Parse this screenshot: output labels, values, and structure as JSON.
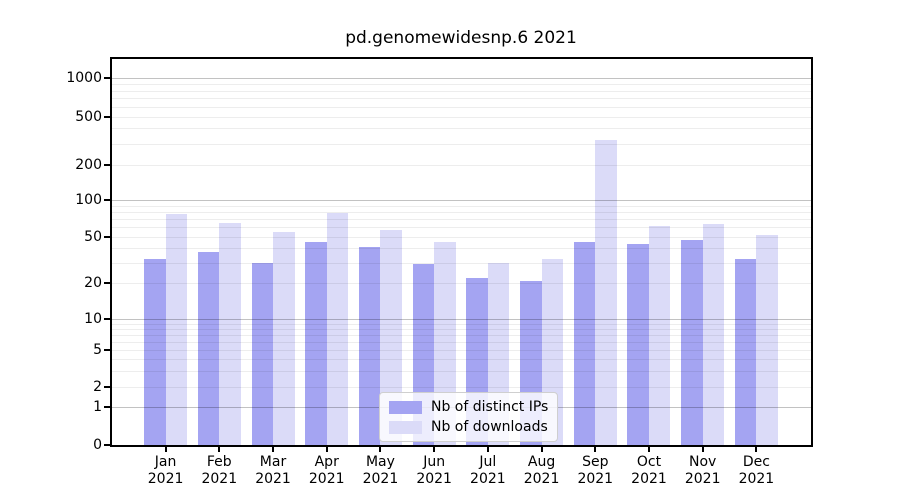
{
  "chart_data": {
    "type": "bar",
    "title": "pd.genomewidesnp.6 2021",
    "categories": [
      "Jan",
      "Feb",
      "Mar",
      "Apr",
      "May",
      "Jun",
      "Jul",
      "Aug",
      "Sep",
      "Oct",
      "Nov",
      "Dec"
    ],
    "year": "2021",
    "series": [
      {
        "name": "Nb of distinct IPs",
        "color": "#a4a4f2",
        "values": [
          32,
          37,
          30,
          45,
          41,
          29,
          22,
          21,
          45,
          43,
          47,
          32
        ]
      },
      {
        "name": "Nb of downloads",
        "color": "#dbdbf8",
        "values": [
          77,
          65,
          55,
          79,
          57,
          45,
          30,
          32,
          320,
          61,
          64,
          52
        ]
      }
    ],
    "xlabel": "",
    "ylabel": "",
    "yscale": "symlog",
    "ylim": [
      0,
      1450
    ],
    "yticks": [
      0,
      1,
      2,
      5,
      10,
      20,
      50,
      100,
      200,
      500,
      1000
    ],
    "major_gridlines": [
      1,
      10,
      100,
      1000
    ],
    "minor_gridlines": [
      2,
      3,
      4,
      5,
      6,
      7,
      8,
      9,
      20,
      30,
      40,
      50,
      60,
      70,
      80,
      90,
      200,
      300,
      400,
      500,
      600,
      700,
      800,
      900
    ],
    "grid": "on",
    "legend_position": "inside-bottom-center",
    "scale_anchors": [
      [
        0,
        0.0
      ],
      [
        1,
        0.0977
      ],
      [
        2,
        0.1495
      ],
      [
        5,
        0.2461
      ],
      [
        10,
        0.3264
      ],
      [
        20,
        0.4197
      ],
      [
        50,
        0.5396
      ],
      [
        100,
        0.6347
      ],
      [
        200,
        0.7254
      ],
      [
        500,
        0.8505
      ],
      [
        1000,
        0.9499
      ]
    ]
  }
}
